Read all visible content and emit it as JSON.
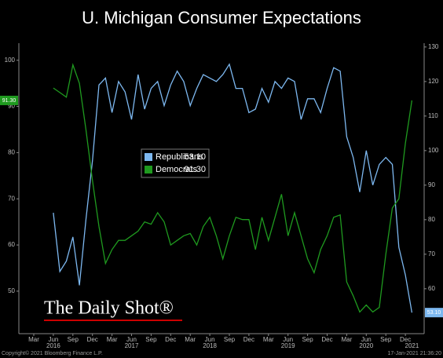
{
  "chart_data": {
    "type": "line",
    "title": "U. Michigan Consumer Expectations",
    "watermark": "The Daily Shot®",
    "footer_left": "Copyright© 2021 Bloomberg Finance L.P.",
    "footer_right": "17-Jan-2021 21:36:20",
    "x": [
      "2016-06",
      "2016-07",
      "2016-08",
      "2016-09",
      "2016-10",
      "2016-11",
      "2016-12",
      "2017-01",
      "2017-02",
      "2017-03",
      "2017-04",
      "2017-05",
      "2017-06",
      "2017-07",
      "2017-08",
      "2017-09",
      "2017-10",
      "2017-11",
      "2017-12",
      "2018-01",
      "2018-02",
      "2018-03",
      "2018-04",
      "2018-05",
      "2018-06",
      "2018-07",
      "2018-08",
      "2018-09",
      "2018-10",
      "2018-11",
      "2018-12",
      "2019-01",
      "2019-02",
      "2019-03",
      "2019-04",
      "2019-05",
      "2019-06",
      "2019-07",
      "2019-08",
      "2019-09",
      "2019-10",
      "2019-11",
      "2019-12",
      "2020-01",
      "2020-02",
      "2020-03",
      "2020-04",
      "2020-05",
      "2020-06",
      "2020-07",
      "2020-08",
      "2020-09",
      "2020-10",
      "2020-11",
      "2020-12",
      "2021-01"
    ],
    "series": [
      {
        "name": "Republicans",
        "color": "#7db8f0",
        "axis": "y2",
        "values": [
          82,
          65,
          68,
          75,
          61,
          80,
          97,
          119,
          121,
          111,
          120,
          117,
          109,
          122,
          112,
          118,
          120,
          113,
          119,
          123,
          120,
          113,
          118,
          122,
          121,
          120,
          122,
          125,
          118,
          118,
          111,
          112,
          118,
          114,
          120,
          118,
          121,
          120,
          109,
          115,
          115,
          111,
          118,
          124,
          123,
          104,
          98,
          88,
          100,
          90,
          96,
          98,
          96,
          72,
          64,
          53.1
        ],
        "value_labels": [
          null,
          null,
          null,
          null,
          null,
          null,
          null,
          null,
          null,
          null,
          null,
          null,
          null,
          null,
          null,
          null,
          null,
          null,
          null,
          null,
          null,
          null,
          null,
          null,
          null,
          null,
          null,
          null,
          null,
          null,
          null,
          null,
          null,
          null,
          null,
          null,
          null,
          null,
          null,
          null,
          null,
          null,
          null,
          null,
          null,
          null,
          null,
          null,
          null,
          null,
          null,
          null,
          null,
          null,
          null,
          "53.10"
        ]
      },
      {
        "name": "Democrats",
        "color": "#1f9a1f",
        "axis": "y",
        "values": [
          94,
          93,
          92,
          99,
          95,
          85,
          74,
          64,
          56,
          59,
          61,
          61,
          62,
          63,
          65,
          64.5,
          67,
          65,
          60,
          61,
          62,
          62.5,
          60,
          64,
          66,
          62,
          57,
          62,
          66,
          65.5,
          65.5,
          59,
          66,
          61,
          66,
          71,
          62,
          67,
          62,
          57,
          54,
          59,
          62,
          66,
          66.5,
          52,
          49,
          45.5,
          47,
          45.5,
          46.5,
          58,
          68,
          70,
          82,
          91.3
        ],
        "value_labels": [
          null,
          null,
          null,
          null,
          null,
          null,
          null,
          null,
          null,
          null,
          null,
          null,
          null,
          null,
          null,
          null,
          null,
          null,
          null,
          null,
          null,
          null,
          null,
          null,
          null,
          null,
          null,
          null,
          null,
          null,
          null,
          null,
          null,
          null,
          null,
          null,
          null,
          null,
          null,
          null,
          null,
          null,
          null,
          null,
          null,
          null,
          null,
          null,
          null,
          null,
          null,
          null,
          null,
          null,
          null,
          "91.30"
        ]
      }
    ],
    "ylim": [
      40.8,
      103.7
    ],
    "yticks": [
      50,
      60,
      70,
      80,
      90,
      100
    ],
    "y2lim": [
      47,
      131.1
    ],
    "y2ticks": [
      60,
      70,
      80,
      90,
      100,
      110,
      120,
      130
    ],
    "xticks": [
      {
        "value": "2016-03",
        "label": "Mar"
      },
      {
        "value": "2016-06",
        "label": "Jun"
      },
      {
        "value": "2016-09",
        "label": "Sep"
      },
      {
        "value": "2016-12",
        "label": "Dec"
      },
      {
        "value": "2017-03",
        "label": "Mar"
      },
      {
        "value": "2017-06",
        "label": "Jun"
      },
      {
        "value": "2017-09",
        "label": "Sep"
      },
      {
        "value": "2017-12",
        "label": "Dec"
      },
      {
        "value": "2018-03",
        "label": "Mar"
      },
      {
        "value": "2018-06",
        "label": "Jun"
      },
      {
        "value": "2018-09",
        "label": "Sep"
      },
      {
        "value": "2018-12",
        "label": "Dec"
      },
      {
        "value": "2019-03",
        "label": "Mar"
      },
      {
        "value": "2019-06",
        "label": "Jun"
      },
      {
        "value": "2019-09",
        "label": "Sep"
      },
      {
        "value": "2019-12",
        "label": "Dec"
      },
      {
        "value": "2020-03",
        "label": "Mar"
      },
      {
        "value": "2020-06",
        "label": "Jun"
      },
      {
        "value": "2020-09",
        "label": "Sep"
      },
      {
        "value": "2020-12",
        "label": "Dec"
      }
    ],
    "year_labels": [
      {
        "value": "2016-06",
        "label": "2016"
      },
      {
        "value": "2017-06",
        "label": "2017"
      },
      {
        "value": "2018-06",
        "label": "2018"
      },
      {
        "value": "2019-06",
        "label": "2019"
      },
      {
        "value": "2020-06",
        "label": "2020"
      },
      {
        "value": "2021-01",
        "label": "2021"
      }
    ],
    "grid": false
  }
}
